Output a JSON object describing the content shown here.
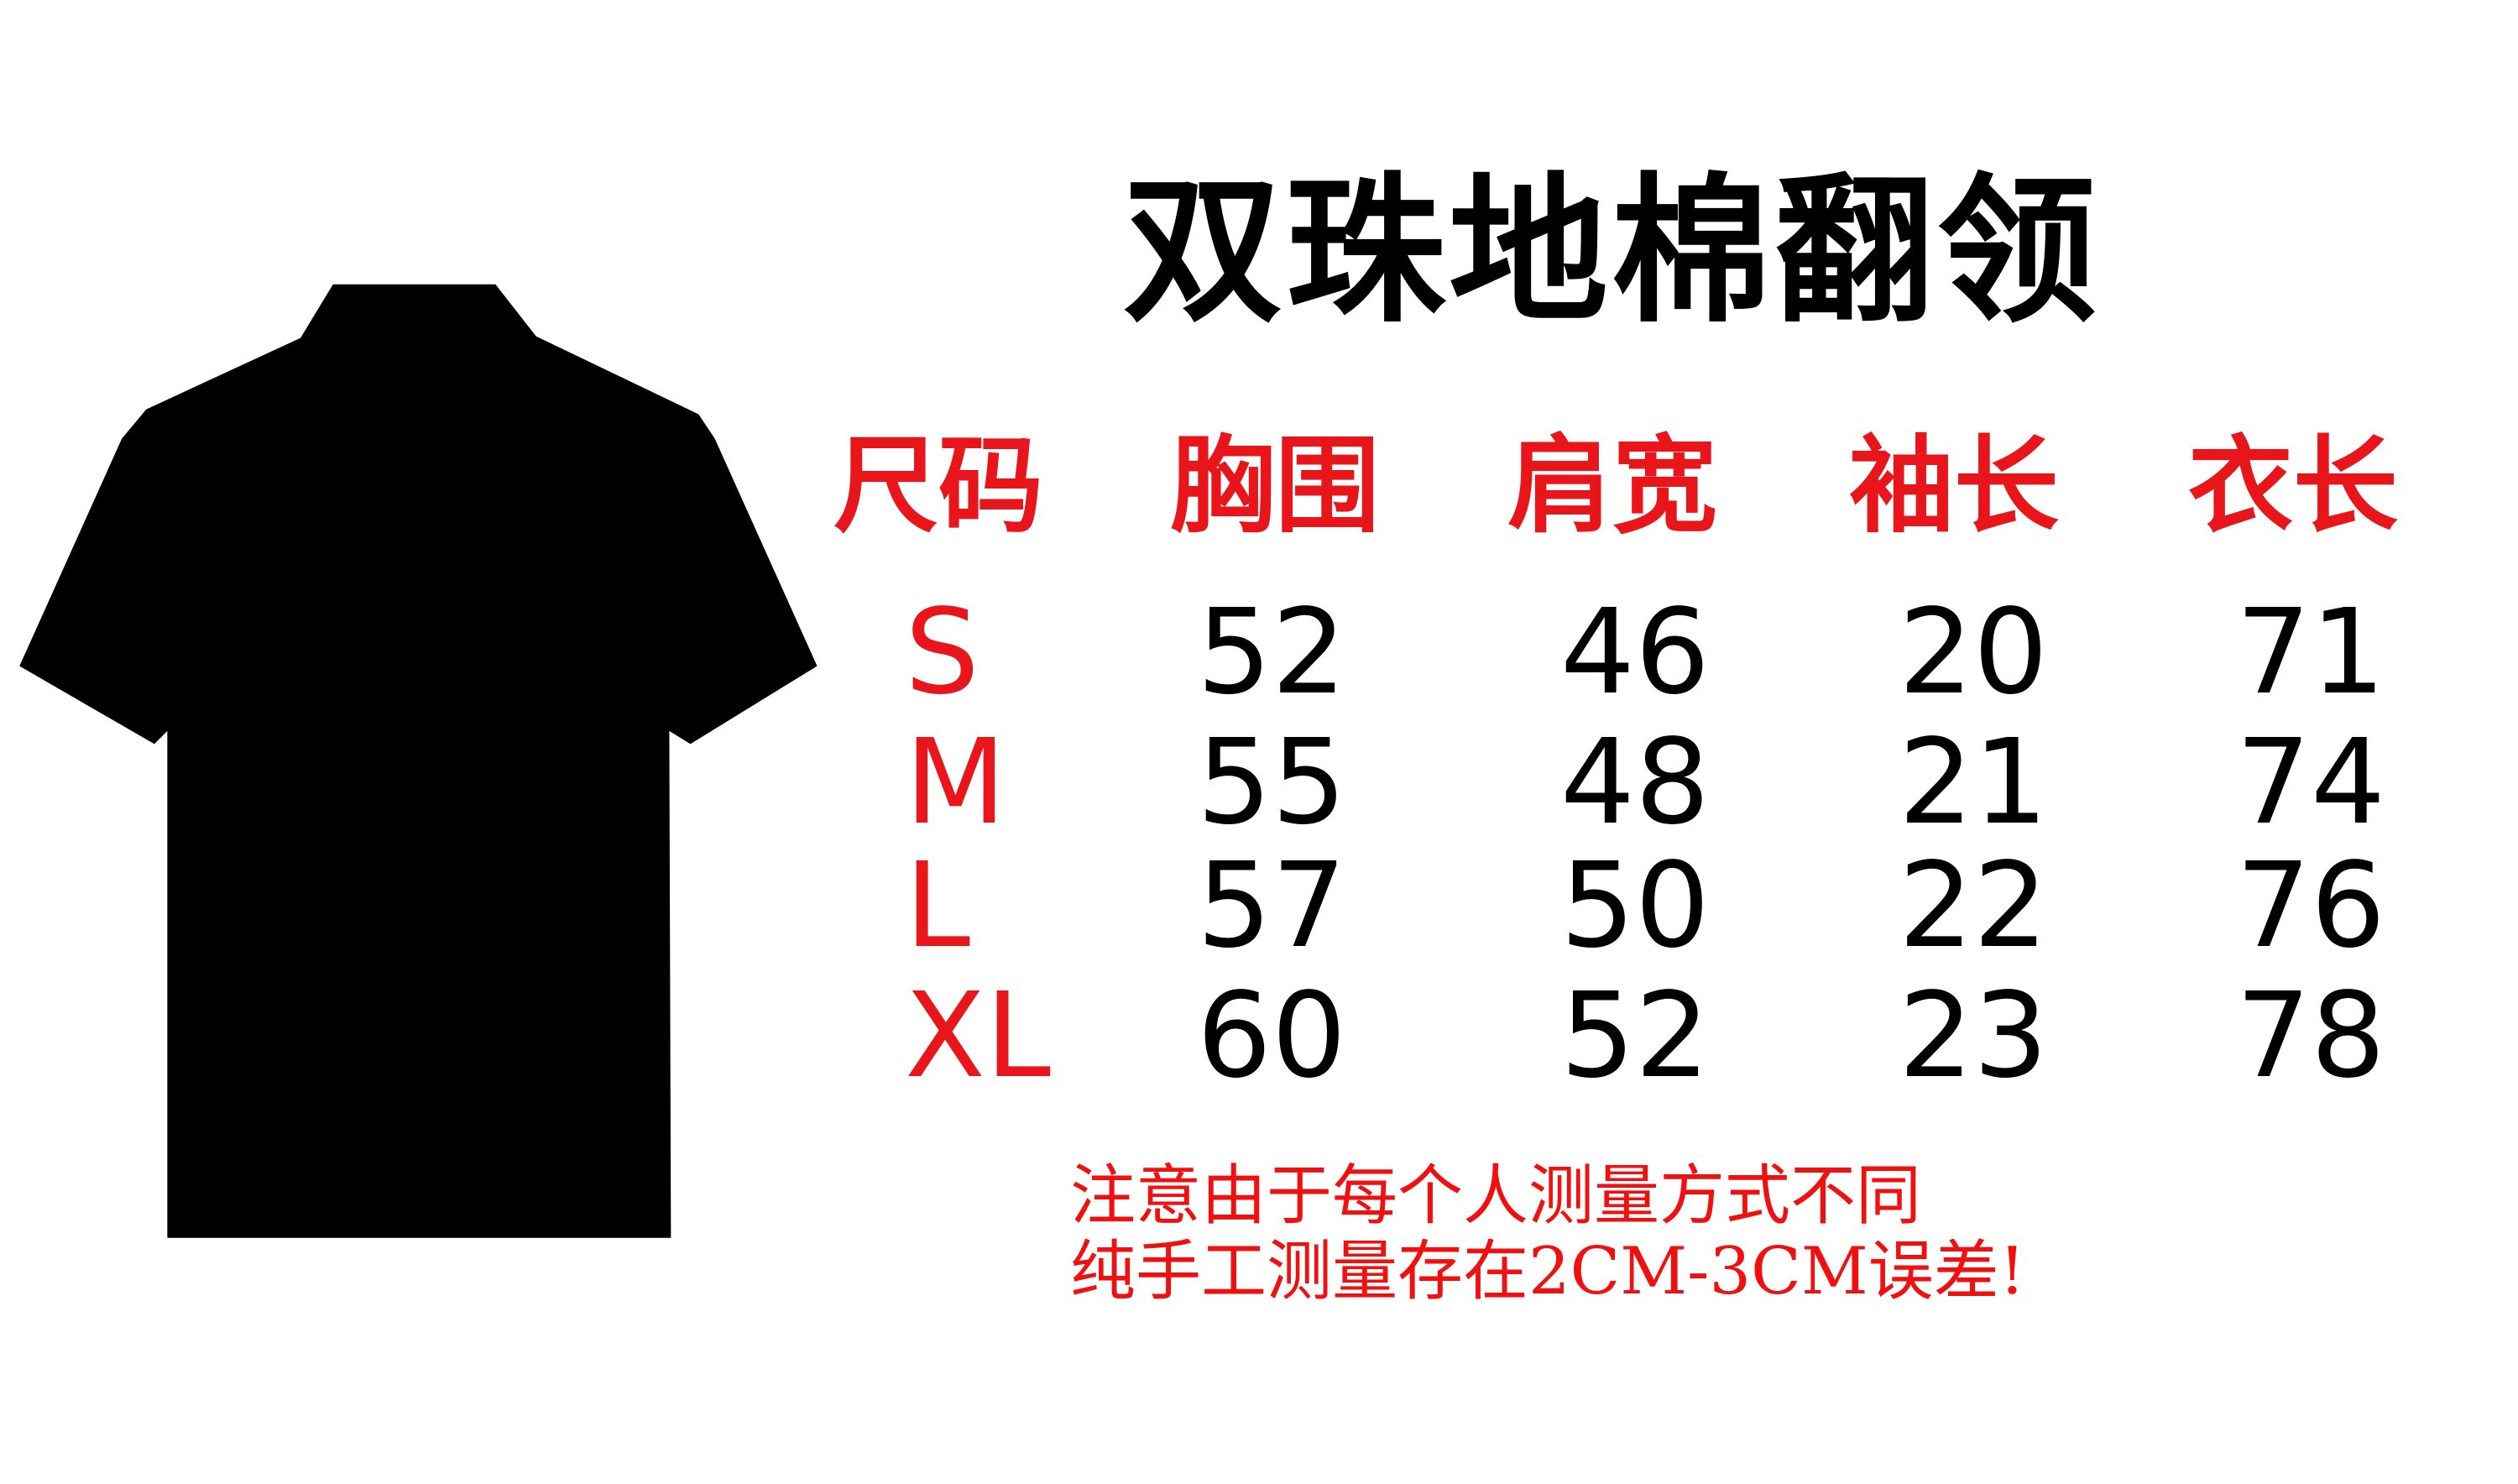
{
  "title": "双珠地棉翻领",
  "table": {
    "headers": [
      "尺码",
      "胸围",
      "肩宽",
      "袖长",
      "衣长"
    ],
    "rows": [
      {
        "size": "S",
        "values": [
          "52",
          "46",
          "20",
          "71"
        ]
      },
      {
        "size": "M",
        "values": [
          "55",
          "48",
          "21",
          "74"
        ]
      },
      {
        "size": "L",
        "values": [
          "57",
          "50",
          "22",
          "76"
        ]
      },
      {
        "size": "XL",
        "values": [
          "60",
          "52",
          "23",
          "78"
        ]
      }
    ]
  },
  "note": {
    "line1": "注意由于每个人测量方式不同",
    "line2": "纯手工测量存在2CM-3CM误差!"
  },
  "colors": {
    "accent": "#e8151b",
    "text": "#000000",
    "shirt": "#000000"
  }
}
